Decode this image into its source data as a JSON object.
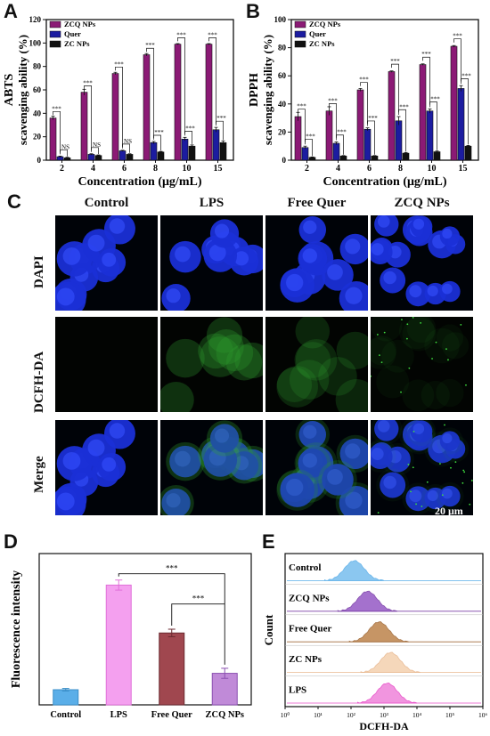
{
  "panels": {
    "a": "A",
    "b": "B",
    "c": "C",
    "d": "D",
    "e": "E"
  },
  "legend_labels": [
    "ZCQ NPs",
    "Quer",
    "ZC NPs"
  ],
  "colors": {
    "zcq": "#8b1a75",
    "quer": "#1c1ca0",
    "zc": "#111111",
    "control": "#5aaee8",
    "lps": "#f4a0ef",
    "freequer": "#a0474f",
    "zcqnps": "#c08ad8"
  },
  "chart_data": [
    {
      "id": "A",
      "type": "bar",
      "ylabel_line1": "ABTS",
      "ylabel_line2": "scavenging ability (%)",
      "xlabel": "Concentration (μg/mL)",
      "categories": [
        "2",
        "4",
        "6",
        "8",
        "10",
        "15"
      ],
      "ylim": [
        0,
        120
      ],
      "yticks": [
        0,
        20,
        40,
        60,
        80,
        100,
        120
      ],
      "series": [
        {
          "name": "ZCQ NPs",
          "values": [
            36,
            58,
            74,
            90,
            99,
            99
          ],
          "err": [
            1.5,
            2.5,
            1,
            1,
            0.5,
            0.5
          ]
        },
        {
          "name": "Quer",
          "values": [
            3,
            5,
            8,
            15,
            18,
            26
          ],
          "err": [
            0.5,
            0.5,
            0.5,
            1,
            1.5,
            2
          ]
        },
        {
          "name": "ZC NPs",
          "values": [
            2,
            4,
            5,
            7,
            12,
            15
          ],
          "err": [
            0.5,
            0.5,
            0.5,
            0.5,
            1,
            1.5
          ]
        }
      ],
      "annotations": [
        [
          "***",
          "NS"
        ],
        [
          "***",
          "NS"
        ],
        [
          "***",
          "NS"
        ],
        [
          "***",
          "***"
        ],
        [
          "***",
          "***"
        ],
        [
          "***",
          "***"
        ]
      ]
    },
    {
      "id": "B",
      "type": "bar",
      "ylabel_line1": "DPPH",
      "ylabel_line2": "scavenging ability (%)",
      "xlabel": "Concentration (μg/mL)",
      "categories": [
        "2",
        "4",
        "6",
        "8",
        "10",
        "15"
      ],
      "ylim": [
        0,
        100
      ],
      "yticks": [
        0,
        20,
        40,
        60,
        80,
        100
      ],
      "series": [
        {
          "name": "ZCQ NPs",
          "values": [
            31,
            35,
            50,
            63,
            68,
            81
          ],
          "err": [
            3,
            3,
            1,
            0.5,
            0.5,
            0.5
          ]
        },
        {
          "name": "Quer",
          "values": [
            9,
            12,
            22,
            28,
            35,
            51
          ],
          "err": [
            1,
            1,
            1,
            3,
            1.5,
            2
          ]
        },
        {
          "name": "ZC NPs",
          "values": [
            2,
            3,
            3,
            5,
            6,
            10
          ],
          "err": [
            0.3,
            0.3,
            0.3,
            0.5,
            0.5,
            0.5
          ]
        }
      ],
      "annotations": [
        [
          "***",
          "***"
        ],
        [
          "***",
          "***"
        ],
        [
          "***",
          "***"
        ],
        [
          "***",
          "***"
        ],
        [
          "***",
          "***"
        ],
        [
          "***",
          "***"
        ]
      ]
    },
    {
      "id": "D",
      "type": "bar",
      "ylabel": "Fluorescence intensity",
      "categories": [
        "Control",
        "LPS",
        "Free Quer",
        "ZCQ NPs"
      ],
      "values": [
        12,
        95,
        57,
        25
      ],
      "err": [
        1,
        4,
        3,
        4
      ],
      "ylim": [
        0,
        120
      ],
      "significance": [
        {
          "from": "LPS",
          "to": "ZCQ NPs",
          "label": "***"
        },
        {
          "from": "Free Quer",
          "to": "ZCQ NPs",
          "label": "***"
        }
      ]
    },
    {
      "id": "E",
      "type": "histogram",
      "xlabel": "DCFH-DA",
      "ylabel": "Count",
      "rows": [
        {
          "name": "Control",
          "peak_log10": 2.1,
          "color": "#5aaee8",
          "fill": "#7fc1ef"
        },
        {
          "name": "ZCQ NPs",
          "peak_log10": 2.5,
          "color": "#7a3fa6",
          "fill": "#9b62c8"
        },
        {
          "name": "Free Quer",
          "peak_log10": 2.85,
          "color": "#a06a3a",
          "fill": "#c08a55"
        },
        {
          "name": "ZC NPs",
          "peak_log10": 3.2,
          "color": "#e8b890",
          "fill": "#f4d3b3"
        },
        {
          "name": "LPS",
          "peak_log10": 3.1,
          "color": "#e84dc8",
          "fill": "#f08adc"
        }
      ],
      "xticks": [
        "10⁰",
        "10¹",
        "10²",
        "10³",
        "10⁴",
        "10⁵",
        "10⁶"
      ]
    }
  ],
  "microscopy": {
    "columns": [
      "Control",
      "LPS",
      "Free Quer",
      "ZCQ NPs"
    ],
    "rows": [
      "DAPI",
      "DCFH-DA",
      "Merge"
    ],
    "scale_bar": "20 μm"
  }
}
